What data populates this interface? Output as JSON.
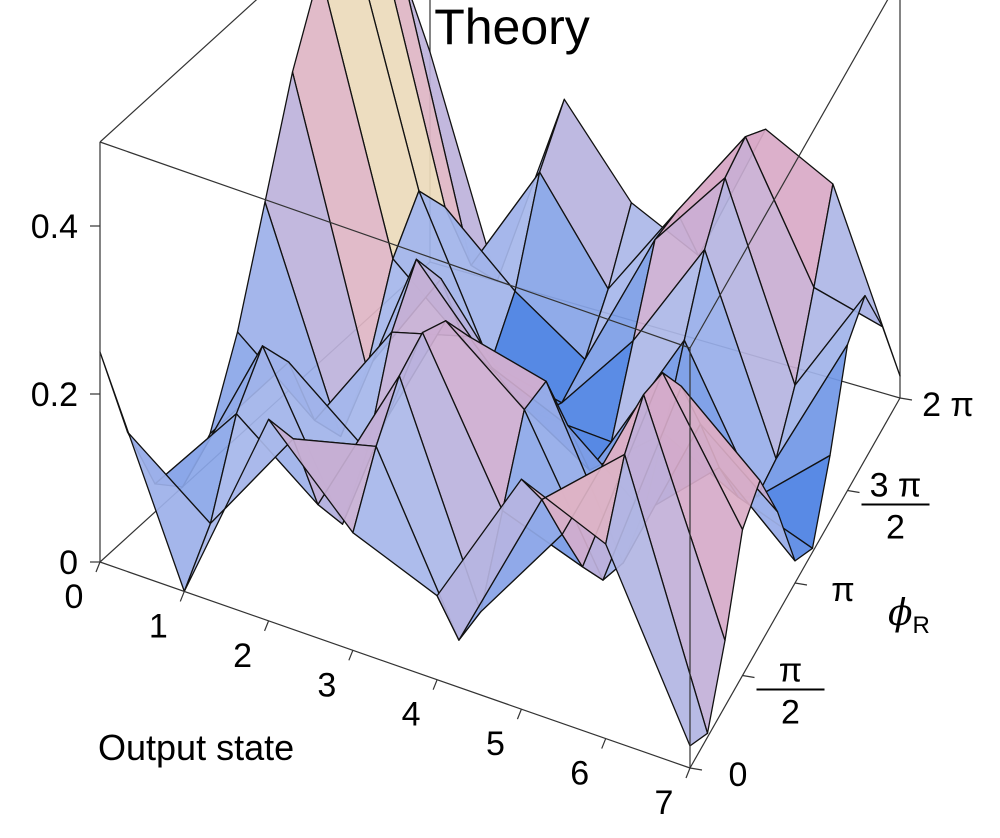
{
  "chart_data": {
    "type": "surface3d",
    "title": "Theory",
    "xlabel": "Output state",
    "ylabel_symbol": "ϕ",
    "ylabel_subscript": "R",
    "zlabel": "",
    "x": [
      0,
      1,
      2,
      3,
      4,
      5,
      6,
      7
    ],
    "x_ticks": [
      "0",
      "1",
      "2",
      "3",
      "4",
      "5",
      "6",
      "7"
    ],
    "y_range": [
      0,
      6.2832
    ],
    "y_ticks": [
      {
        "num": "0",
        "den": ""
      },
      {
        "num": "π",
        "den": "2"
      },
      {
        "num": "π",
        "den": ""
      },
      {
        "num": "3 π",
        "den": "2"
      },
      {
        "num": "2 π",
        "den": ""
      }
    ],
    "zlim": [
      0,
      0.5
    ],
    "z_ticks": [
      "0",
      "0.2",
      "0.4"
    ],
    "grid": false,
    "surface_samples": 13,
    "profiles": [
      {
        "state": 0,
        "base": 0.25,
        "amp": 0.25,
        "freq": 1,
        "phase": 1.5708
      },
      {
        "state": 1,
        "base": 0.1,
        "amp": 0.1,
        "freq": 2,
        "phase": 3.1416
      },
      {
        "state": 2,
        "base": 0.13,
        "amp": 0.11,
        "freq": 2,
        "phase": 0.0
      },
      {
        "state": 3,
        "base": 0.14,
        "amp": 0.14,
        "freq": 1,
        "phase": -1.5708
      },
      {
        "state": 4,
        "base": 0.1,
        "amp": 0.1,
        "freq": 2,
        "phase": 1.5708
      },
      {
        "state": 5,
        "base": 0.15,
        "amp": 0.15,
        "freq": 1,
        "phase": 0.6
      },
      {
        "state": 6,
        "base": 0.17,
        "amp": 0.17,
        "freq": 1,
        "phase": -1.2
      },
      {
        "state": 7,
        "base": 0.1,
        "amp": 0.1,
        "freq": 2,
        "phase": 2.4
      }
    ],
    "colors": {
      "low": "#2a6de0",
      "mid_low": "#a9b8ea",
      "mid": "#d9a9c7",
      "mid_high": "#f2e9b8",
      "high": "#f2c7b3",
      "edge": "#111111",
      "box": "#333333"
    }
  }
}
